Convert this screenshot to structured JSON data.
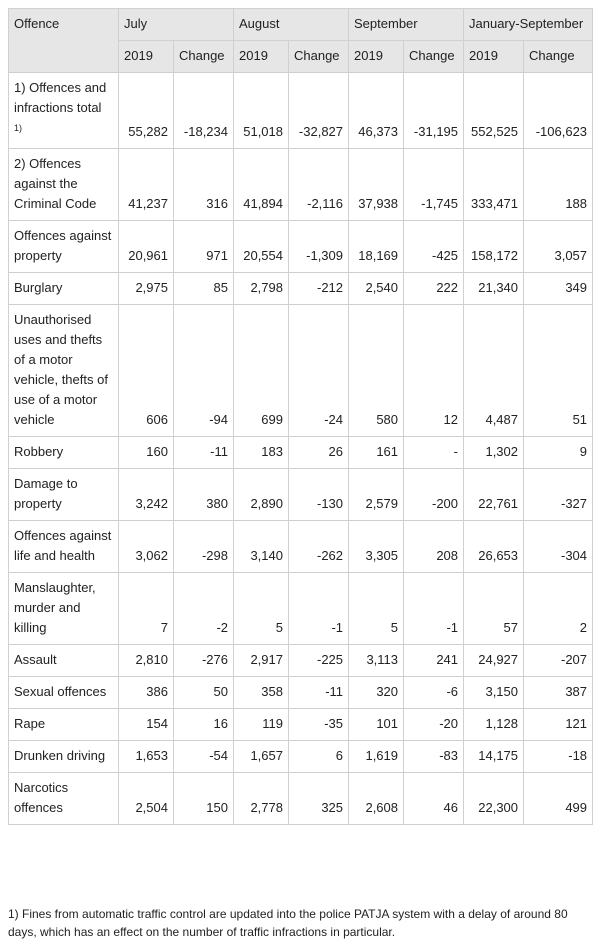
{
  "table": {
    "header": [
      "Offence",
      "July",
      "August",
      "September",
      "January-September"
    ],
    "subheader": [
      "2019",
      "Change",
      "2019",
      "Change",
      "2019",
      "Change",
      "2019",
      "Change"
    ],
    "rows": [
      {
        "offence": "1) Offences and infractions total",
        "note": "1)",
        "values": [
          "55,282",
          "-18,234",
          "51,018",
          "-32,827",
          "46,373",
          "-31,195",
          "552,525",
          "-106,623"
        ]
      },
      {
        "offence": "2) Offences against the Criminal Code",
        "values": [
          "41,237",
          "316",
          "41,894",
          "-2,116",
          "37,938",
          "-1,745",
          "333,471",
          "188"
        ]
      },
      {
        "offence": "Offences against property",
        "values": [
          "20,961",
          "971",
          "20,554",
          "-1,309",
          "18,169",
          "-425",
          "158,172",
          "3,057"
        ]
      },
      {
        "offence": "Burglary",
        "values": [
          "2,975",
          "85",
          "2,798",
          "-212",
          "2,540",
          "222",
          "21,340",
          "349"
        ]
      },
      {
        "offence": "Unauthorised uses and thefts of a motor vehicle, thefts of use of a motor vehicle",
        "values": [
          "606",
          "-94",
          "699",
          "-24",
          "580",
          "12",
          "4,487",
          "51"
        ]
      },
      {
        "offence": "Robbery",
        "values": [
          "160",
          "-11",
          "183",
          "26",
          "161",
          "-",
          "1,302",
          "9"
        ]
      },
      {
        "offence": "Damage to property",
        "values": [
          "3,242",
          "380",
          "2,890",
          "-130",
          "2,579",
          "-200",
          "22,761",
          "-327"
        ]
      },
      {
        "offence": "Offences against life and health",
        "values": [
          "3,062",
          "-298",
          "3,140",
          "-262",
          "3,305",
          "208",
          "26,653",
          "-304"
        ]
      },
      {
        "offence": "Manslaughter, murder and killing",
        "values": [
          "7",
          "-2",
          "5",
          "-1",
          "5",
          "-1",
          "57",
          "2"
        ]
      },
      {
        "offence": "Assault",
        "values": [
          "2,810",
          "-276",
          "2,917",
          "-225",
          "3,113",
          "241",
          "24,927",
          "-207"
        ]
      },
      {
        "offence": "Sexual offences",
        "values": [
          "386",
          "50",
          "358",
          "-11",
          "320",
          "-6",
          "3,150",
          "387"
        ]
      },
      {
        "offence": "Rape",
        "values": [
          "154",
          "16",
          "119",
          "-35",
          "101",
          "-20",
          "1,128",
          "121"
        ]
      },
      {
        "offence": "Drunken driving",
        "values": [
          "1,653",
          "-54",
          "1,657",
          "6",
          "1,619",
          "-83",
          "14,175",
          "-18"
        ]
      },
      {
        "offence": "Narcotics offences",
        "values": [
          "2,504",
          "150",
          "2,778",
          "325",
          "2,608",
          "46",
          "22,300",
          "499"
        ]
      }
    ]
  },
  "footnote": "1) Fines from automatic traffic control are updated into the police PATJA system with a delay of around 80 days, which has an effect on the number of traffic infractions in particular."
}
